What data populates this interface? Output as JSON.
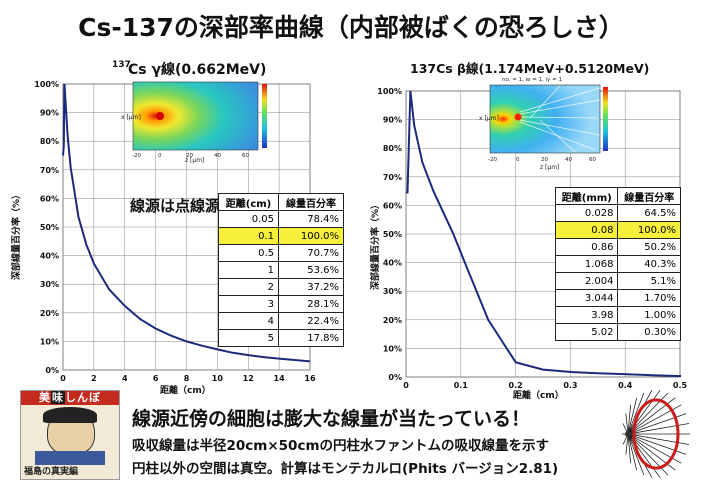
{
  "title": "Cs-137の深部率曲線（内部被ばくの恐ろしさ）",
  "left_panel": {
    "title_sup": "137",
    "title": "Cs γ線(0.662MeV)",
    "note": "線源は点線源",
    "ylabel": "深部線量百分率（%）",
    "xlabel": "距離（cm）",
    "table": {
      "headers": [
        "距離(cm)",
        "線量百分率"
      ],
      "rows": [
        [
          "0.05",
          "78.4%"
        ],
        [
          "0.1",
          "100.0%"
        ],
        [
          "0.5",
          "70.7%"
        ],
        [
          "1",
          "53.6%"
        ],
        [
          "2",
          "37.2%"
        ],
        [
          "3",
          "28.1%"
        ],
        [
          "4",
          "22.4%"
        ],
        [
          "5",
          "17.8%"
        ]
      ],
      "highlight_row": 1
    },
    "inset_axis_labels": [
      "z [μm]",
      "x [μm]"
    ],
    "inset_ticks": [
      "-20",
      "0",
      "20",
      "40",
      "60"
    ]
  },
  "right_panel": {
    "title": "137Cs β線(1.174MeV+0.5120MeV)",
    "ylabel": "深部線量百分率（%）",
    "xlabel": "距離（cm）",
    "table": {
      "headers": [
        "距離(mm)",
        "線量百分率"
      ],
      "rows": [
        [
          "0.028",
          "64.5%"
        ],
        [
          "0.08",
          "100.0%"
        ],
        [
          "0.86",
          "50.2%"
        ],
        [
          "1.068",
          "40.3%"
        ],
        [
          "2.004",
          "5.1%"
        ],
        [
          "3.044",
          "1.70%"
        ],
        [
          "3.98",
          "1.00%"
        ],
        [
          "5.02",
          "0.30%"
        ]
      ],
      "highlight_row": 1
    },
    "inset_header": "no. = 1, ie = 1, iy = 1",
    "inset_axis_labels": [
      "z [μm]",
      "x [μm]"
    ],
    "inset_ticks": [
      "-20",
      "0",
      "20",
      "40",
      "60"
    ]
  },
  "bottom": {
    "headline": "線源近傍の細胞は膨大な線量が当たっている！",
    "line1": "吸収線量は半径20cm×50cmの円柱水ファントムの吸収線量を示す",
    "line2": "円柱以外の空間は真空。計算はモンテカルロ(Phits バージョン2.81)"
  },
  "manga": {
    "title_chars": [
      "美",
      "味",
      "し",
      "ん",
      "ぼ"
    ],
    "subtitle": "福島の真実編"
  },
  "colors": {
    "curve": "#1b2a7a",
    "grid": "#888888",
    "highlight": "#f6f03a",
    "sim_ring": "#cc1b1b"
  },
  "chart_data": [
    {
      "type": "line",
      "title": "137Cs γ線(0.662MeV)",
      "xlabel": "距離（cm）",
      "ylabel": "深部線量百分率（%）",
      "xlim": [
        0,
        16
      ],
      "ylim": [
        0,
        100
      ],
      "xticks": [
        0,
        2,
        4,
        6,
        8,
        10,
        12,
        14,
        16
      ],
      "yticks": [
        0,
        10,
        20,
        30,
        40,
        50,
        60,
        70,
        80,
        90,
        100
      ],
      "grid": true,
      "series": [
        {
          "x": [
            0,
            0.05,
            0.1,
            0.3,
            0.5,
            1,
            1.5,
            2,
            3,
            4,
            5,
            6,
            7,
            8,
            9,
            10,
            11,
            12,
            13,
            14,
            15,
            16
          ],
          "y": [
            75,
            78.4,
            100,
            82,
            70.7,
            53.6,
            44,
            37.2,
            28.1,
            22.4,
            17.8,
            14.5,
            12,
            10,
            8.5,
            7.2,
            6,
            5.2,
            4.5,
            4,
            3.5,
            3
          ]
        }
      ]
    },
    {
      "type": "line",
      "title": "137Cs β線(1.174MeV+0.5120MeV)",
      "xlabel": "距離（cm）",
      "ylabel": "深部線量百分率（%）",
      "xlim": [
        0,
        0.5
      ],
      "ylim": [
        0,
        100
      ],
      "xticks": [
        0,
        0.1,
        0.2,
        0.3,
        0.4,
        0.5
      ],
      "yticks": [
        0,
        10,
        20,
        30,
        40,
        50,
        60,
        70,
        80,
        90,
        100
      ],
      "grid": true,
      "series": [
        {
          "x": [
            0,
            0.0028,
            0.008,
            0.015,
            0.03,
            0.05,
            0.086,
            0.1068,
            0.15,
            0.2004,
            0.25,
            0.3044,
            0.35,
            0.398,
            0.45,
            0.502
          ],
          "y": [
            64.5,
            64.5,
            100,
            88,
            75,
            65,
            50.2,
            40.3,
            20,
            5.1,
            2.6,
            1.7,
            1.3,
            1.0,
            0.6,
            0.3
          ]
        }
      ]
    }
  ]
}
